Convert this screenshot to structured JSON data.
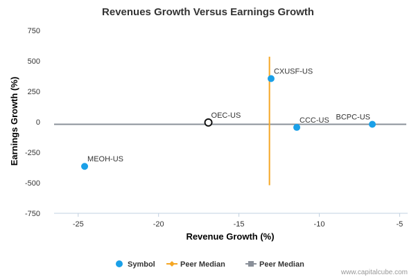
{
  "chart_data": {
    "type": "scatter",
    "title": "Revenues Growth Versus Earnings Growth",
    "xlabel": "Revenue Growth (%)",
    "ylabel": "Earnings Growth (%)",
    "xlim": [
      -26.5,
      -4.5
    ],
    "ylim": [
      -750,
      750
    ],
    "x_ticks": [
      -25,
      -20,
      -15,
      -10,
      -5
    ],
    "y_ticks": [
      750,
      500,
      250,
      0,
      -250,
      -500,
      -750
    ],
    "grid": false,
    "legend_position": "bottom",
    "points": [
      {
        "label": "MEOH-US",
        "x": -24.6,
        "y": -365,
        "style": "filled",
        "color": "#1aa0e8"
      },
      {
        "label": "OEC-US",
        "x": -16.9,
        "y": -5,
        "style": "hollow",
        "color": "#111111"
      },
      {
        "label": "CXUSF-US",
        "x": -13.0,
        "y": 355,
        "style": "filled",
        "color": "#1aa0e8"
      },
      {
        "label": "CCC-US",
        "x": -11.4,
        "y": -45,
        "style": "filled",
        "color": "#1aa0e8"
      },
      {
        "label": "BCPC-US",
        "x": -6.7,
        "y": -20,
        "style": "filled",
        "color": "#1aa0e8"
      }
    ],
    "peer_median_x": {
      "value": -13.1,
      "y_from": -520,
      "y_to": 535,
      "color": "#f5a623"
    },
    "peer_median_y": {
      "value": -20,
      "color": "#8a9099"
    },
    "legend": [
      {
        "name": "Symbol",
        "marker": "circle",
        "color": "#1aa0e8"
      },
      {
        "name": "Peer Median",
        "marker": "diamond-line",
        "color": "#f5a623"
      },
      {
        "name": "Peer Median",
        "marker": "square-line",
        "color": "#8a9099"
      }
    ]
  },
  "credit": "www.capitalcube.com"
}
